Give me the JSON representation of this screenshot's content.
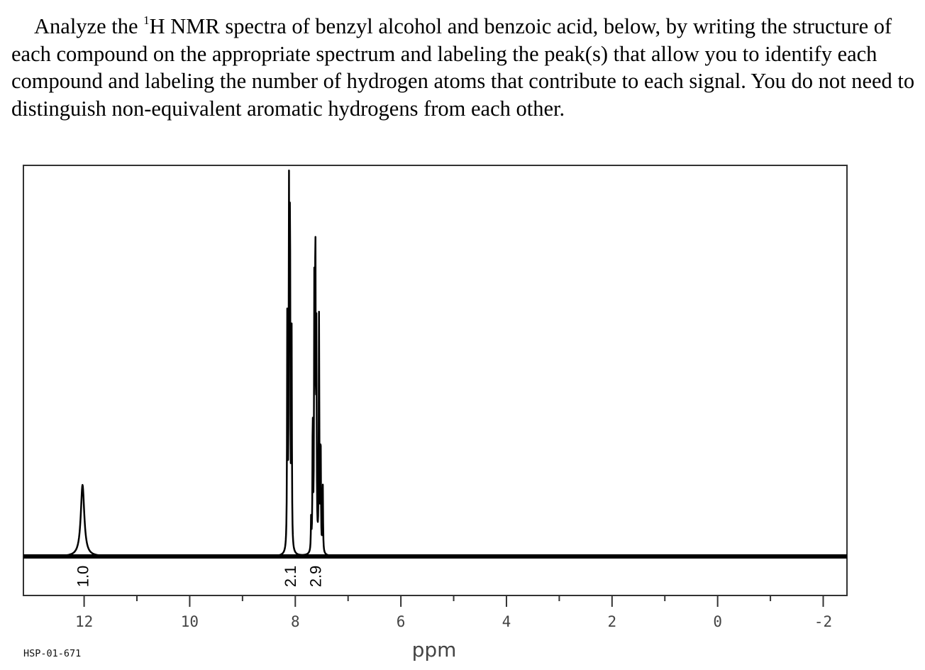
{
  "question": {
    "prefix": "Analyze the ",
    "superscript": "1",
    "suffix": "H NMR spectra of benzyl alcohol and benzoic acid, below, by writing the structure of each compound on the appropriate spectrum and labeling the peak(s) that allow you to identify each compound and labeling the number of hydrogen atoms that contribute to each signal. You do not need to distinguish non-equivalent aromatic hydrogens from each other."
  },
  "chart_data": {
    "type": "line",
    "title": "",
    "xlabel": "ppm",
    "ylabel": "",
    "xlim": [
      13.15,
      -2.45
    ],
    "x_reversed": true,
    "grid": false,
    "tick_labels": [
      {
        "value": 12,
        "text": "12"
      },
      {
        "value": 10,
        "text": "10"
      },
      {
        "value": 8,
        "text": "8"
      },
      {
        "value": 6,
        "text": "6"
      },
      {
        "value": 4,
        "text": "4"
      },
      {
        "value": 2,
        "text": "2"
      },
      {
        "value": 0,
        "text": "0"
      },
      {
        "value": -2,
        "text": "-2"
      }
    ],
    "minor_ticks": [
      11,
      9,
      7,
      5,
      3,
      1,
      -1
    ],
    "baseline_intensity": 0,
    "peaks": [
      {
        "ppm": 12.03,
        "intensity": 0.2,
        "width": 0.04,
        "group": "acid"
      },
      {
        "ppm": 8.15,
        "intensity": 0.75,
        "width": 0.006,
        "group": "ortho"
      },
      {
        "ppm": 8.12,
        "intensity": 0.98,
        "width": 0.006,
        "group": "ortho"
      },
      {
        "ppm": 8.1,
        "intensity": 0.98,
        "width": 0.006,
        "group": "ortho"
      },
      {
        "ppm": 8.07,
        "intensity": 0.62,
        "width": 0.006,
        "group": "ortho"
      },
      {
        "ppm": 7.7,
        "intensity": 0.09,
        "width": 0.006,
        "group": "aromatic"
      },
      {
        "ppm": 7.67,
        "intensity": 0.38,
        "width": 0.006,
        "group": "aromatic"
      },
      {
        "ppm": 7.64,
        "intensity": 0.7,
        "width": 0.006,
        "group": "aromatic"
      },
      {
        "ppm": 7.62,
        "intensity": 0.9,
        "width": 0.006,
        "group": "aromatic"
      },
      {
        "ppm": 7.6,
        "intensity": 0.58,
        "width": 0.006,
        "group": "aromatic"
      },
      {
        "ppm": 7.55,
        "intensity": 0.66,
        "width": 0.006,
        "group": "aromatic"
      },
      {
        "ppm": 7.52,
        "intensity": 0.33,
        "width": 0.006,
        "group": "aromatic"
      },
      {
        "ppm": 7.48,
        "intensity": 0.2,
        "width": 0.006,
        "group": "aromatic"
      }
    ],
    "integrals": [
      {
        "ppm": 12.03,
        "text": "1.0"
      },
      {
        "ppm": 8.1,
        "text": "2.1"
      },
      {
        "ppm": 7.62,
        "text": "2.9"
      }
    ],
    "footer_code": "HSP-01-671"
  }
}
